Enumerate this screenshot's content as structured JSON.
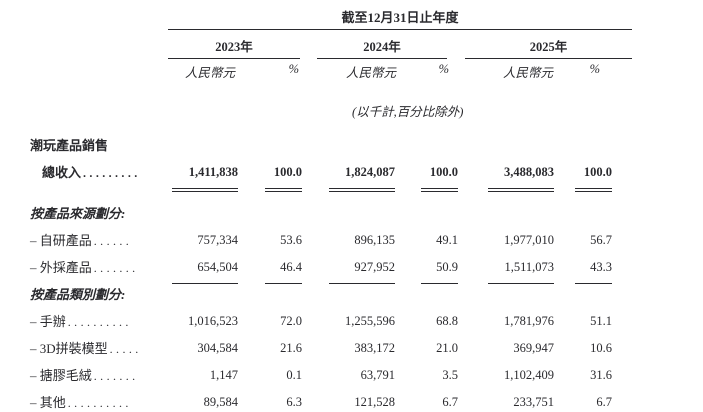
{
  "colors": {
    "text": "#2a2a2e",
    "rule": "#2a2a2e",
    "background": "#ffffff"
  },
  "table": {
    "period_header": "截至12月31日止年度",
    "unit_note": "(以千計,百分比除外)",
    "year_groups": [
      {
        "year": "2023年",
        "currency_label": "人民幣元",
        "pct_label": "%"
      },
      {
        "year": "2024年",
        "currency_label": "人民幣元",
        "pct_label": "%"
      },
      {
        "year": "2025年",
        "currency_label": "人民幣元",
        "pct_label": "%"
      }
    ],
    "rows": [
      {
        "type": "section",
        "label": "潮玩產品銷售",
        "emphasis": "bold"
      },
      {
        "type": "data",
        "label": "總收入",
        "leader": ".........",
        "indent": true,
        "bold": true,
        "underline": "double",
        "values": [
          "1,411,838",
          "100.0",
          "1,824,087",
          "100.0",
          "3,488,083",
          "100.0"
        ]
      },
      {
        "type": "section",
        "label": "按產品來源劃分:",
        "emphasis": "bold-italic",
        "gap_before": true
      },
      {
        "type": "data",
        "label": "– 自研產品",
        "leader": "......",
        "underline": "none",
        "values": [
          "757,334",
          "53.6",
          "896,135",
          "49.1",
          "1,977,010",
          "56.7"
        ]
      },
      {
        "type": "data",
        "label": "– 外採產品",
        "leader": ".......",
        "underline": "single",
        "values": [
          "654,504",
          "46.4",
          "927,952",
          "50.9",
          "1,511,073",
          "43.3"
        ]
      },
      {
        "type": "section",
        "label": "按產品類別劃分:",
        "emphasis": "bold-italic"
      },
      {
        "type": "data",
        "label": "– 手辦",
        "leader": "..........",
        "underline": "none",
        "values": [
          "1,016,523",
          "72.0",
          "1,255,596",
          "68.8",
          "1,781,976",
          "51.1"
        ]
      },
      {
        "type": "data",
        "label": "– 3D拼裝模型",
        "leader": ".....",
        "underline": "none",
        "values": [
          "304,584",
          "21.6",
          "383,172",
          "21.0",
          "369,947",
          "10.6"
        ]
      },
      {
        "type": "data",
        "label": "– 搪膠毛絨",
        "leader": ".......",
        "underline": "none",
        "values": [
          "1,147",
          "0.1",
          "63,791",
          "3.5",
          "1,102,409",
          "31.6"
        ]
      },
      {
        "type": "data",
        "label": "– 其他",
        "leader": "..........",
        "underline": "single",
        "values": [
          "89,584",
          "6.3",
          "121,528",
          "6.7",
          "233,751",
          "6.7"
        ]
      }
    ]
  }
}
